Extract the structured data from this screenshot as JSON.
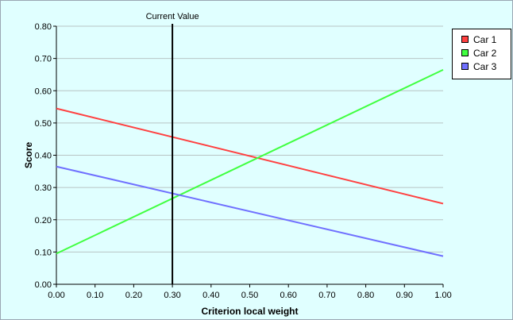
{
  "chart_data": {
    "type": "line",
    "title": "",
    "xlabel": "Criterion local weight",
    "ylabel": "Score",
    "xlim": [
      0,
      1
    ],
    "ylim": [
      0,
      0.8
    ],
    "x_ticks": [
      "0.00",
      "0.10",
      "0.20",
      "0.30",
      "0.40",
      "0.50",
      "0.60",
      "0.70",
      "0.80",
      "0.90",
      "1.00"
    ],
    "y_ticks": [
      "0.00",
      "0.10",
      "0.20",
      "0.30",
      "0.40",
      "0.50",
      "0.60",
      "0.70",
      "0.80"
    ],
    "grid": "horizontal",
    "legend_position": "top-right outside",
    "marker": {
      "label": "Current Value",
      "x": 0.3,
      "color": "#000000"
    },
    "series": [
      {
        "name": "Car 1",
        "color": "#ff4040",
        "x": [
          0,
          1
        ],
        "values": [
          0.545,
          0.25
        ]
      },
      {
        "name": "Car 2",
        "color": "#40ff40",
        "x": [
          0,
          1
        ],
        "values": [
          0.095,
          0.665
        ]
      },
      {
        "name": "Car 3",
        "color": "#7070ff",
        "x": [
          0,
          1
        ],
        "values": [
          0.365,
          0.087
        ]
      }
    ]
  },
  "colors": {
    "background": "#e0ffff",
    "grid": "#b8c4c4",
    "axis": "#000000"
  }
}
